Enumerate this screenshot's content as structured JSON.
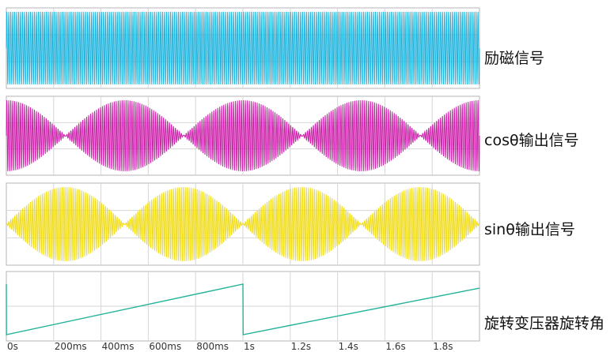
{
  "chart_data": [
    {
      "type": "line",
      "label": "励磁信号",
      "signal": "carrier",
      "color": "#1fb3dd",
      "amplitude_range": [
        -1,
        1
      ],
      "carrier_cycles": 240,
      "envelope": "constant"
    },
    {
      "type": "line",
      "label": "cosθ输出信号",
      "signal": "carrier_times_cos",
      "color": "#cc22aa",
      "amplitude_range": [
        -1,
        1
      ],
      "carrier_cycles": 240,
      "envelope": "|cos(theta)|"
    },
    {
      "type": "line",
      "label": "sinθ输出信号",
      "signal": "carrier_times_sin",
      "color": "#f0dc1e",
      "amplitude_range": [
        -1,
        1
      ],
      "carrier_cycles": 240,
      "envelope": "|sin(theta)|"
    },
    {
      "type": "line",
      "label": "旋转变压器旋转角",
      "signal": "rotation_angle",
      "color": "#22b39a",
      "x": [
        0,
        0.0005,
        1.0,
        1.001,
        2.0
      ],
      "y": [
        1,
        0,
        1,
        0,
        0.92
      ],
      "xlabel": "",
      "xlim": [
        0,
        2.0
      ],
      "ticks": [
        "0s",
        "200ms",
        "400ms",
        "600ms",
        "800ms",
        "1s",
        "1.2s",
        "1.4s",
        "1.6s",
        "1.8s"
      ]
    }
  ],
  "theta_cycles_over_span": 2
}
